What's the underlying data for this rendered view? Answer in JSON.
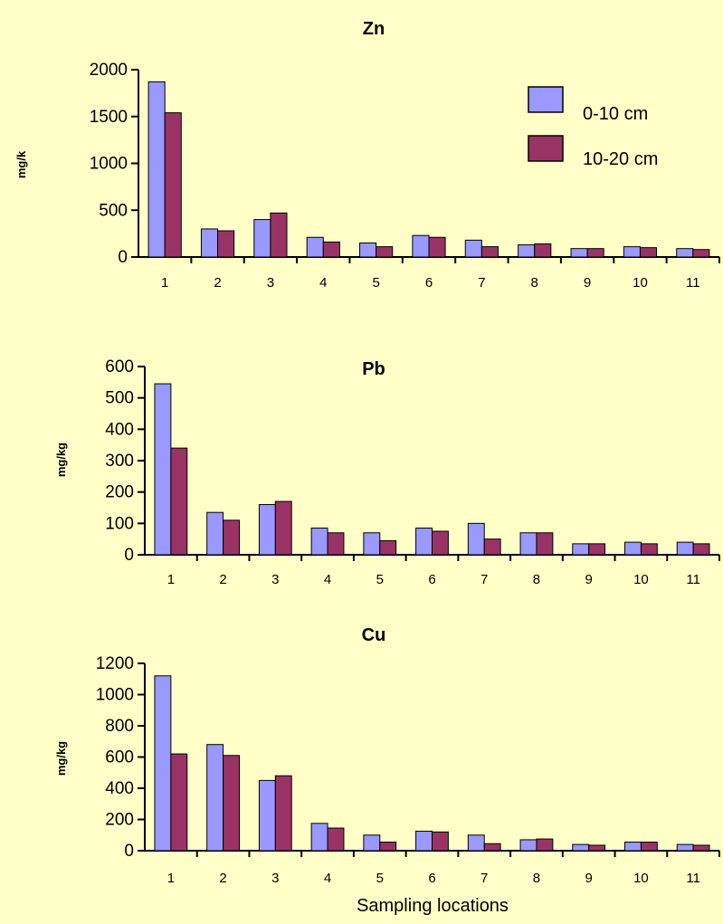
{
  "chart_data": [
    {
      "type": "bar",
      "title": "Zn",
      "ylabel": "mg/k",
      "xlabel": "",
      "categories": [
        "1",
        "2",
        "3",
        "4",
        "5",
        "6",
        "7",
        "8",
        "9",
        "10",
        "11"
      ],
      "ylim": [
        0,
        2000
      ],
      "yticks": [
        "0",
        "500",
        "1000",
        "1500",
        "2000"
      ],
      "series": [
        {
          "name": "0-10 cm",
          "values": [
            1870,
            300,
            400,
            210,
            150,
            230,
            180,
            130,
            90,
            110,
            90
          ]
        },
        {
          "name": "10-20 cm",
          "values": [
            1540,
            280,
            470,
            160,
            110,
            210,
            110,
            140,
            90,
            100,
            80
          ]
        }
      ],
      "legend": {
        "position": "top-right",
        "entries": [
          "0-10 cm",
          "10-20 cm"
        ]
      }
    },
    {
      "type": "bar",
      "title": "Pb",
      "ylabel": "mg/kg",
      "xlabel": "",
      "categories": [
        "1",
        "2",
        "3",
        "4",
        "5",
        "6",
        "7",
        "8",
        "9",
        "10",
        "11"
      ],
      "ylim": [
        0,
        600
      ],
      "yticks": [
        "0",
        "100",
        "200",
        "300",
        "400",
        "500",
        "600"
      ],
      "series": [
        {
          "name": "0-10 cm",
          "values": [
            545,
            135,
            160,
            85,
            70,
            85,
            100,
            70,
            35,
            40,
            40
          ]
        },
        {
          "name": "10-20 cm",
          "values": [
            340,
            110,
            170,
            70,
            45,
            75,
            50,
            70,
            35,
            35,
            35
          ]
        }
      ]
    },
    {
      "type": "bar",
      "title": "Cu",
      "ylabel": "mg/kg",
      "xlabel": "Sampling locations",
      "categories": [
        "1",
        "2",
        "3",
        "4",
        "5",
        "6",
        "7",
        "8",
        "9",
        "10",
        "11"
      ],
      "ylim": [
        0,
        1200
      ],
      "yticks": [
        "0",
        "200",
        "400",
        "600",
        "800",
        "1000",
        "1200"
      ],
      "series": [
        {
          "name": "0-10 cm",
          "values": [
            1120,
            680,
            450,
            175,
            100,
            125,
            100,
            70,
            40,
            55,
            40
          ]
        },
        {
          "name": "10-20 cm",
          "values": [
            620,
            610,
            480,
            145,
            55,
            120,
            45,
            75,
            35,
            55,
            35
          ]
        }
      ]
    }
  ],
  "colors": {
    "background": "#FFFFC8",
    "series_0_fill": "#9999FF",
    "series_1_fill": "#993366",
    "axis": "#000000"
  }
}
